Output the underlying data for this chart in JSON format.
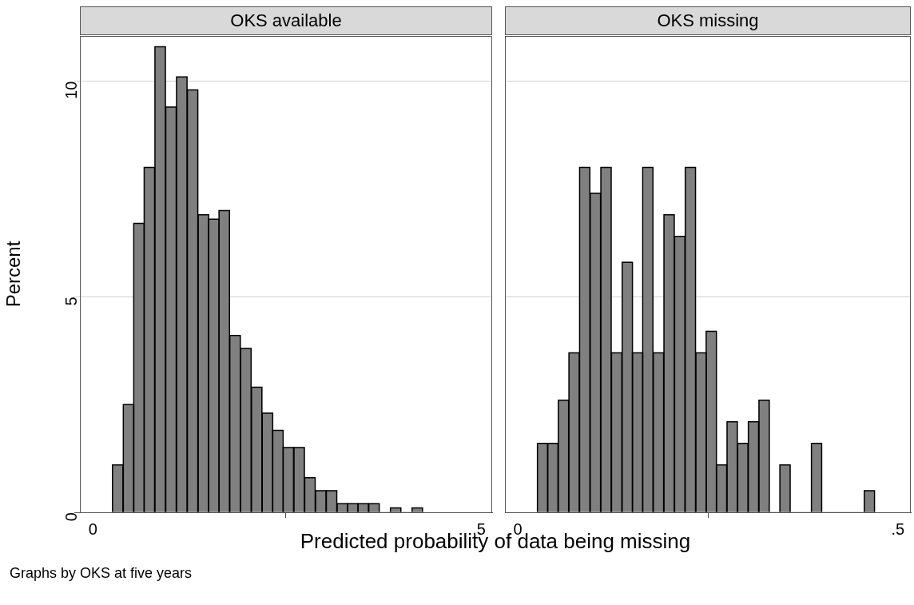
{
  "chart_data": [
    {
      "type": "histogram",
      "title": "OKS available",
      "ylabel": "Percent",
      "xlabel": "Predicted probability of data being missing",
      "annotations": [
        "Graphs by OKS at five years"
      ],
      "color": "#808080",
      "bins": [
        0.025,
        0.039,
        0.053,
        0.066,
        0.08,
        0.094,
        0.108,
        0.122,
        0.136,
        0.15,
        0.163,
        0.177,
        0.191,
        0.205,
        0.219,
        0.233,
        0.246,
        0.26,
        0.274,
        0.288,
        0.302,
        0.316,
        0.33,
        0.343,
        0.357,
        0.371,
        0.385,
        0.399,
        0.413,
        0.427
      ],
      "values": [
        1.1,
        2.5,
        6.7,
        8.0,
        10.8,
        9.4,
        10.1,
        9.8,
        6.9,
        6.8,
        7.0,
        4.1,
        3.8,
        2.9,
        2.3,
        1.9,
        1.5,
        1.5,
        0.8,
        0.5,
        0.5,
        0.2,
        0.2,
        0.2,
        0.2,
        0,
        0.1,
        0,
        0.1
      ],
      "xlim": [
        -0.017,
        0.517
      ],
      "xticks": [
        0,
        {
          "value": 0.5,
          "label": ".5"
        }
      ],
      "ylim": [
        0,
        11.05
      ],
      "yticks": [
        0,
        5,
        10
      ],
      "grid": "y",
      "legend": false
    },
    {
      "type": "histogram",
      "title": "OKS missing",
      "color": "#808080",
      "bins": [
        0.026,
        0.039,
        0.053,
        0.067,
        0.081,
        0.095,
        0.109,
        0.123,
        0.137,
        0.151,
        0.164,
        0.178,
        0.192,
        0.206,
        0.22,
        0.234,
        0.248,
        0.261,
        0.275,
        0.289,
        0.303,
        0.317,
        0.331,
        0.345,
        0.358,
        0.372,
        0.386,
        0.4,
        0.414,
        0.428,
        0.442,
        0.456,
        0.469
      ],
      "values": [
        1.6,
        1.6,
        2.6,
        3.7,
        8.0,
        7.4,
        8.0,
        3.7,
        5.8,
        3.7,
        8.0,
        3.7,
        6.9,
        6.4,
        8.0,
        3.7,
        4.2,
        1.1,
        2.1,
        1.6,
        2.1,
        2.6,
        0,
        1.1,
        0,
        0,
        1.6,
        0,
        0,
        0,
        0,
        0.5
      ],
      "xlim": [
        -0.017,
        0.517
      ],
      "xticks": [
        0,
        {
          "value": 0.5,
          "label": ".5"
        }
      ],
      "ylim": [
        0,
        11.05
      ],
      "yticks": [
        0,
        5,
        10
      ],
      "tick_labels": "x",
      "grid": "y",
      "legend": false
    }
  ]
}
